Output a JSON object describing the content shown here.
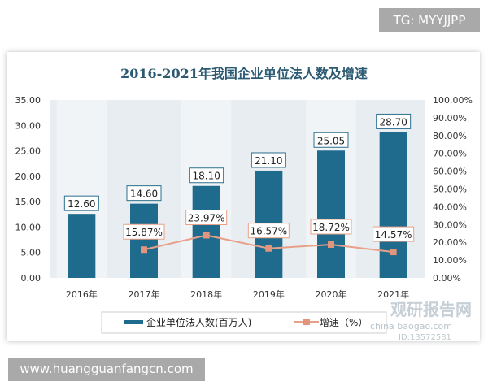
{
  "watermark_top": "TG: MYYJJPP",
  "watermark_bottom": "www.huangguanfangcn.com",
  "logo_text": "观研报告网 chinabaogao.com ID:13572581",
  "chart_data": {
    "type": "bar+line",
    "title": "2016-2021年我国企业单位法人数及增速",
    "categories": [
      "2016年",
      "2017年",
      "2018年",
      "2019年",
      "2020年",
      "2021年"
    ],
    "series": [
      {
        "name": "企业单位法人数(百万人)",
        "type": "bar",
        "axis": "left",
        "values": [
          12.6,
          14.6,
          18.1,
          21.1,
          25.05,
          28.7
        ],
        "labels": [
          "12.60",
          "14.60",
          "18.10",
          "21.10",
          "25.05",
          "28.70"
        ],
        "color": "#1f6b8e"
      },
      {
        "name": "增速（%）",
        "type": "line",
        "axis": "right",
        "values": [
          null,
          15.87,
          23.97,
          16.57,
          18.72,
          14.57
        ],
        "labels": [
          "",
          "15.87%",
          "23.97%",
          "16.57%",
          "18.72%",
          "14.57%"
        ],
        "color": "#e8a088"
      }
    ],
    "left_axis": {
      "ylim": [
        0,
        35
      ],
      "ticks": [
        "0.00",
        "5.00",
        "10.00",
        "15.00",
        "20.00",
        "25.00",
        "30.00",
        "35.00"
      ]
    },
    "right_axis": {
      "ylim": [
        0,
        100
      ],
      "ticks": [
        "0.00%",
        "10.00%",
        "20.00%",
        "30.00%",
        "40.00%",
        "50.00%",
        "60.00%",
        "70.00%",
        "80.00%",
        "90.00%",
        "100.00%"
      ]
    },
    "legend_position": "bottom",
    "grid": false
  }
}
